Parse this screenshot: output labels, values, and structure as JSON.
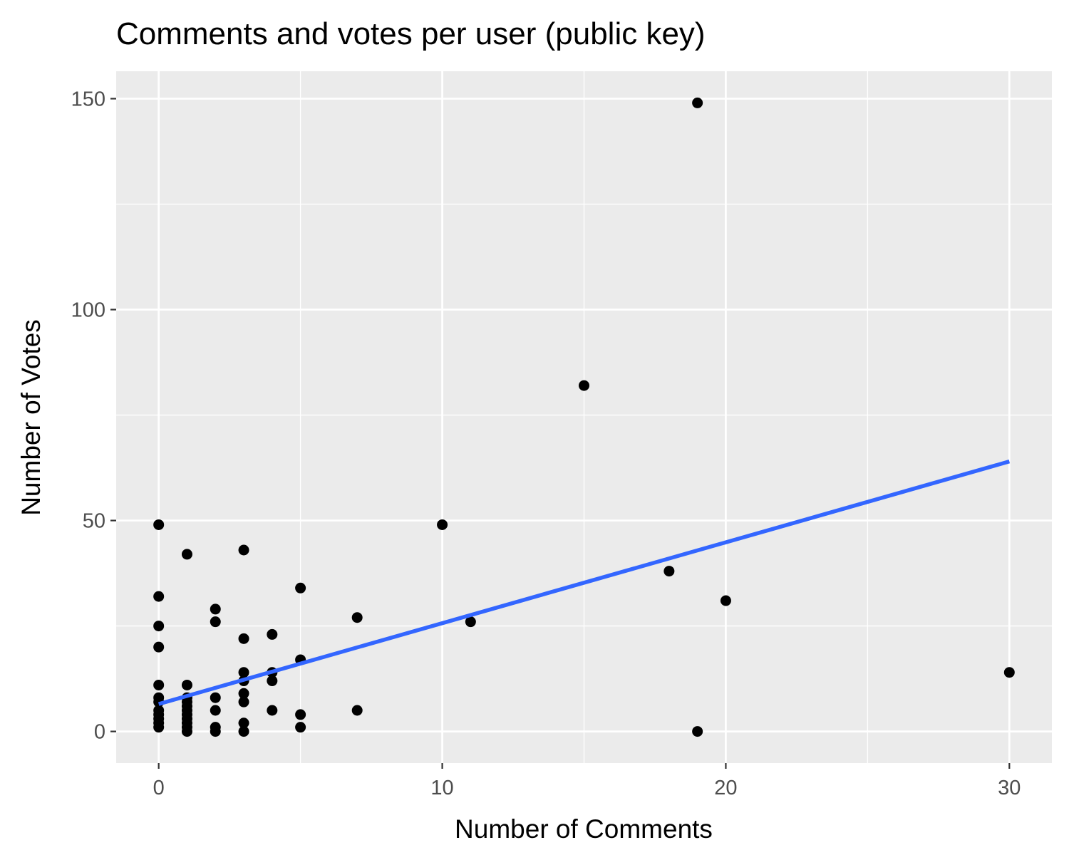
{
  "chart_data": {
    "type": "scatter",
    "title": "Comments and votes per user (public key)",
    "xlabel": "Number of Comments",
    "ylabel": "Number of Votes",
    "xlim": [
      -1.5,
      31.5
    ],
    "ylim": [
      -7.5,
      156.5
    ],
    "x_ticks": [
      0,
      10,
      20,
      30
    ],
    "x_tick_labels": [
      "0",
      "10",
      "20",
      "30"
    ],
    "y_ticks": [
      0,
      50,
      100,
      150
    ],
    "y_tick_labels": [
      "0",
      "50",
      "100",
      "150"
    ],
    "x_minor_ticks": [
      5,
      15,
      25
    ],
    "y_minor_ticks": [
      25,
      75,
      125
    ],
    "grid": true,
    "legend": "none",
    "point_color": "#000000",
    "points": [
      {
        "x": 0,
        "y": 49
      },
      {
        "x": 0,
        "y": 32
      },
      {
        "x": 0,
        "y": 25
      },
      {
        "x": 0,
        "y": 20
      },
      {
        "x": 0,
        "y": 11
      },
      {
        "x": 0,
        "y": 8
      },
      {
        "x": 0,
        "y": 7
      },
      {
        "x": 0,
        "y": 5
      },
      {
        "x": 0,
        "y": 4
      },
      {
        "x": 0,
        "y": 3
      },
      {
        "x": 0,
        "y": 2
      },
      {
        "x": 0,
        "y": 1
      },
      {
        "x": 1,
        "y": 42
      },
      {
        "x": 1,
        "y": 11
      },
      {
        "x": 1,
        "y": 8
      },
      {
        "x": 1,
        "y": 7
      },
      {
        "x": 1,
        "y": 6
      },
      {
        "x": 1,
        "y": 5
      },
      {
        "x": 1,
        "y": 4
      },
      {
        "x": 1,
        "y": 3
      },
      {
        "x": 1,
        "y": 2
      },
      {
        "x": 1,
        "y": 1
      },
      {
        "x": 1,
        "y": 0
      },
      {
        "x": 2,
        "y": 29
      },
      {
        "x": 2,
        "y": 26
      },
      {
        "x": 2,
        "y": 8
      },
      {
        "x": 2,
        "y": 5
      },
      {
        "x": 2,
        "y": 1
      },
      {
        "x": 2,
        "y": 0
      },
      {
        "x": 3,
        "y": 43
      },
      {
        "x": 3,
        "y": 22
      },
      {
        "x": 3,
        "y": 14
      },
      {
        "x": 3,
        "y": 12
      },
      {
        "x": 3,
        "y": 9
      },
      {
        "x": 3,
        "y": 7
      },
      {
        "x": 3,
        "y": 2
      },
      {
        "x": 3,
        "y": 0
      },
      {
        "x": 4,
        "y": 23
      },
      {
        "x": 4,
        "y": 14
      },
      {
        "x": 4,
        "y": 12
      },
      {
        "x": 4,
        "y": 5
      },
      {
        "x": 5,
        "y": 34
      },
      {
        "x": 5,
        "y": 17
      },
      {
        "x": 5,
        "y": 4
      },
      {
        "x": 5,
        "y": 1
      },
      {
        "x": 7,
        "y": 27
      },
      {
        "x": 7,
        "y": 5
      },
      {
        "x": 10,
        "y": 49
      },
      {
        "x": 11,
        "y": 26
      },
      {
        "x": 15,
        "y": 82
      },
      {
        "x": 18,
        "y": 38
      },
      {
        "x": 19,
        "y": 149
      },
      {
        "x": 19,
        "y": 0
      },
      {
        "x": 20,
        "y": 31
      },
      {
        "x": 30,
        "y": 14
      }
    ],
    "trend_line": {
      "method": "linear",
      "color": "#3366ff",
      "x": [
        0,
        30
      ],
      "y": [
        6.5,
        64
      ]
    }
  }
}
